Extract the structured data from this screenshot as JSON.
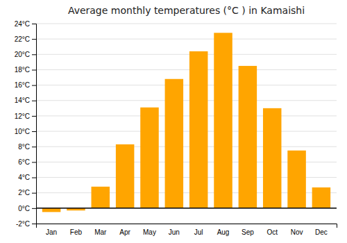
{
  "chart_data": {
    "type": "bar",
    "title": "Average monthly temperatures (°C ) in Kamaishi",
    "categories": [
      "Jan",
      "Feb",
      "Mar",
      "Apr",
      "May",
      "Jun",
      "Jul",
      "Aug",
      "Sep",
      "Oct",
      "Nov",
      "Dec"
    ],
    "values": [
      -0.5,
      -0.3,
      2.8,
      8.3,
      13.1,
      16.8,
      20.4,
      22.8,
      18.5,
      13.0,
      7.5,
      2.7
    ],
    "color": "#FFA500",
    "ylim": [
      -2,
      24
    ],
    "yticks": [
      {
        "value": -2,
        "label": "-2°C"
      },
      {
        "value": 0,
        "label": "0°C"
      },
      {
        "value": 2,
        "label": "2°C"
      },
      {
        "value": 4,
        "label": "4°C"
      },
      {
        "value": 6,
        "label": "6°C"
      },
      {
        "value": 8,
        "label": "8°C"
      },
      {
        "value": 10,
        "label": "10°C"
      },
      {
        "value": 12,
        "label": "12°C"
      },
      {
        "value": 14,
        "label": "14°C"
      },
      {
        "value": 16,
        "label": "16°C"
      },
      {
        "value": 18,
        "label": "18°C"
      },
      {
        "value": 20,
        "label": "20°C"
      },
      {
        "value": 22,
        "label": "22°C"
      },
      {
        "value": 24,
        "label": "24°C"
      }
    ],
    "grid": true
  }
}
